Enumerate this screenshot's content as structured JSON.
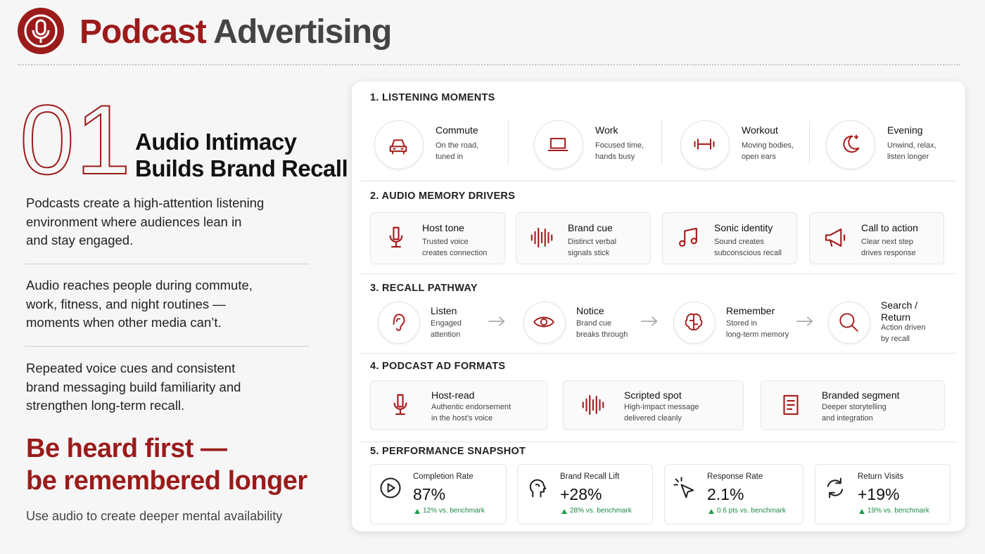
{
  "header": {
    "title_strong": "Podcast",
    "title_rest": "Advertising"
  },
  "intro": {
    "number": "01",
    "heading": [
      "Audio Intimacy",
      "Builds Brand Recall"
    ],
    "paragraphs": [
      [
        "Podcasts create a high-attention listening",
        "environment where audiences lean in",
        "and stay engaged."
      ],
      [
        "Audio reaches people during commute,",
        "work, fitness, and night routines —",
        "moments when other media can’t."
      ],
      [
        "Repeated voice cues and consistent",
        "brand messaging build familiarity and",
        "strengthen long-term recall."
      ]
    ],
    "tagline": [
      "Be heard first —",
      "be remembered longer"
    ],
    "subline": "Use audio to create deeper mental availability"
  },
  "sections": [
    {
      "title": "1. LISTENING MOMENTS",
      "items": [
        {
          "label": "Commute",
          "desc": [
            "On the road,",
            "tuned in"
          ]
        },
        {
          "label": "Work",
          "desc": [
            "Focused time,",
            "hands busy"
          ]
        },
        {
          "label": "Workout",
          "desc": [
            "Moving bodies,",
            "open ears"
          ]
        },
        {
          "label": "Evening",
          "desc": [
            "Unwind, relax,",
            "listen longer"
          ]
        }
      ]
    },
    {
      "title": "2. AUDIO MEMORY DRIVERS",
      "items": [
        {
          "label": "Host tone",
          "desc": [
            "Trusted voice",
            "creates connection"
          ]
        },
        {
          "label": "Brand cue",
          "desc": [
            "Distinct verbal",
            "signals stick"
          ]
        },
        {
          "label": "Sonic identity",
          "desc": [
            "Sound creates",
            "subconscious recall"
          ]
        },
        {
          "label": "Call to action",
          "desc": [
            "Clear next step",
            "drives response"
          ]
        }
      ]
    },
    {
      "title": "3. RECALL PATHWAY",
      "items": [
        {
          "label": "Listen",
          "desc": [
            "Engaged",
            "attention"
          ]
        },
        {
          "label": "Notice",
          "desc": [
            "Brand cue",
            "breaks through"
          ]
        },
        {
          "label": "Remember",
          "desc": [
            "Stored in",
            "long-term memory"
          ]
        },
        {
          "label": "Search / Return",
          "desc": [
            "Action driven",
            "by recall"
          ]
        }
      ]
    },
    {
      "title": "4. PODCAST AD FORMATS",
      "items": [
        {
          "label": "Host-read",
          "desc": [
            "Authentic endorsement",
            "in the host’s voice"
          ]
        },
        {
          "label": "Scripted spot",
          "desc": [
            "High-impact message",
            "delivered cleanly"
          ]
        },
        {
          "label": "Branded segment",
          "desc": [
            "Deeper storytelling",
            "and integration"
          ]
        }
      ]
    },
    {
      "title": "5. PERFORMANCE SNAPSHOT",
      "items": [
        {
          "label": "Completion Rate",
          "value": "87%",
          "delta": "12% vs.  benchmark"
        },
        {
          "label": "Brand Recall Lift",
          "value": "+28%",
          "delta": "28% vs. benchmark"
        },
        {
          "label": "Response Rate",
          "value": "2.1%",
          "delta": "0.6 pts vs. benchmark"
        },
        {
          "label": "Return Visits",
          "value": "+19%",
          "delta": "19% vs. benchmark"
        }
      ]
    }
  ]
}
